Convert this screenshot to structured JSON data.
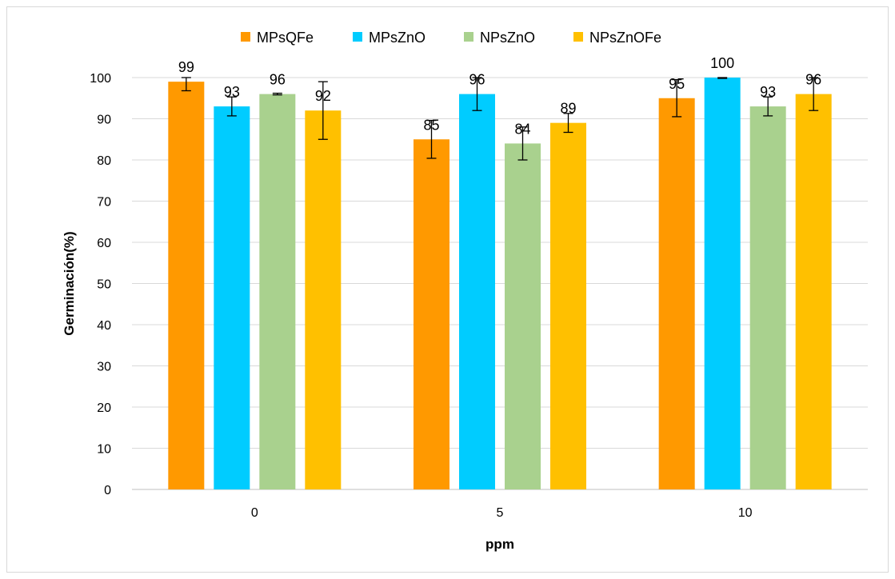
{
  "chart_data": {
    "type": "bar",
    "categories": [
      "0",
      "5",
      "10"
    ],
    "series": [
      {
        "name": "MPsQFe",
        "color": "#ff9900",
        "values": [
          99,
          85,
          95
        ],
        "errors": [
          2.2,
          4.6,
          4.5
        ],
        "labels": [
          "99",
          "85",
          "95"
        ]
      },
      {
        "name": "MPsZnO",
        "color": "#00ccff",
        "values": [
          93,
          96,
          100
        ],
        "errors": [
          2.3,
          4.0,
          0.2
        ],
        "labels": [
          "93",
          "96",
          "100"
        ]
      },
      {
        "name": "NPsZnO",
        "color": "#a9d18e",
        "values": [
          96,
          84,
          93
        ],
        "errors": [
          0.2,
          4.0,
          2.3
        ],
        "labels": [
          "96",
          "84",
          "93"
        ]
      },
      {
        "name": "NPsZnOFe",
        "color": "#ffc000",
        "values": [
          92,
          89,
          96
        ],
        "errors": [
          7.0,
          2.3,
          4.0
        ],
        "labels": [
          "92",
          "89",
          "96"
        ]
      }
    ],
    "xlabel": "ppm",
    "ylabel": "Germinación(%)",
    "ylim": [
      0,
      100
    ],
    "yticks": [
      "0",
      "10",
      "20",
      "30",
      "40",
      "50",
      "60",
      "70",
      "80",
      "90",
      "100"
    ],
    "grid": true,
    "legend_position": "top"
  }
}
